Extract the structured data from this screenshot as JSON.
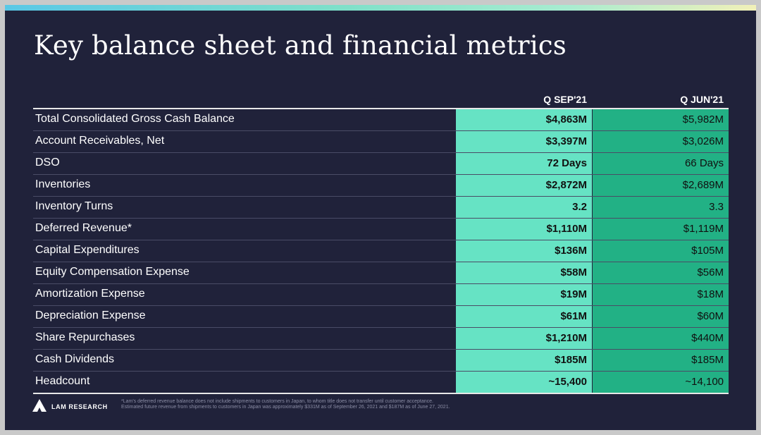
{
  "title": "Key balance sheet and financial metrics",
  "table": {
    "columns": [
      "Q SEP'21",
      "Q JUN'21"
    ],
    "rows": [
      {
        "label": "Total Consolidated Gross Cash Balance",
        "sep21": "$4,863M",
        "jun21": "$5,982M"
      },
      {
        "label": "Account Receivables, Net",
        "sep21": "$3,397M",
        "jun21": "$3,026M"
      },
      {
        "label": "DSO",
        "sep21": "72 Days",
        "jun21": "66 Days"
      },
      {
        "label": "Inventories",
        "sep21": "$2,872M",
        "jun21": "$2,689M"
      },
      {
        "label": "Inventory Turns",
        "sep21": "3.2",
        "jun21": "3.3"
      },
      {
        "label": "Deferred Revenue*",
        "sep21": "$1,110M",
        "jun21": "$1,119M"
      },
      {
        "label": "Capital Expenditures",
        "sep21": "$136M",
        "jun21": "$105M"
      },
      {
        "label": "Equity Compensation Expense",
        "sep21": "$58M",
        "jun21": "$56M"
      },
      {
        "label": "Amortization Expense",
        "sep21": "$19M",
        "jun21": "$18M"
      },
      {
        "label": "Depreciation Expense",
        "sep21": "$61M",
        "jun21": "$60M"
      },
      {
        "label": "Share Repurchases",
        "sep21": "$1,210M",
        "jun21": "$440M"
      },
      {
        "label": "Cash Dividends",
        "sep21": "$185M",
        "jun21": "$185M"
      },
      {
        "label": "Headcount",
        "sep21": "~15,400",
        "jun21": "~14,100"
      }
    ]
  },
  "footer": {
    "logo_text": "LAM RESEARCH",
    "logo_icon": "lam-triangle-logo",
    "footnote_line1": "*Lam's deferred revenue balance does not include shipments to customers in Japan, to whom title does not transfer until customer acceptance.",
    "footnote_line2": "Estimated future revenue from shipments to customers in Japan was approximately $331M as of September 26, 2021 and $187M as of June 27, 2021."
  },
  "colors": {
    "background": "#20223a",
    "current_quarter": "#66e3c4",
    "prior_quarter": "#22b185"
  }
}
